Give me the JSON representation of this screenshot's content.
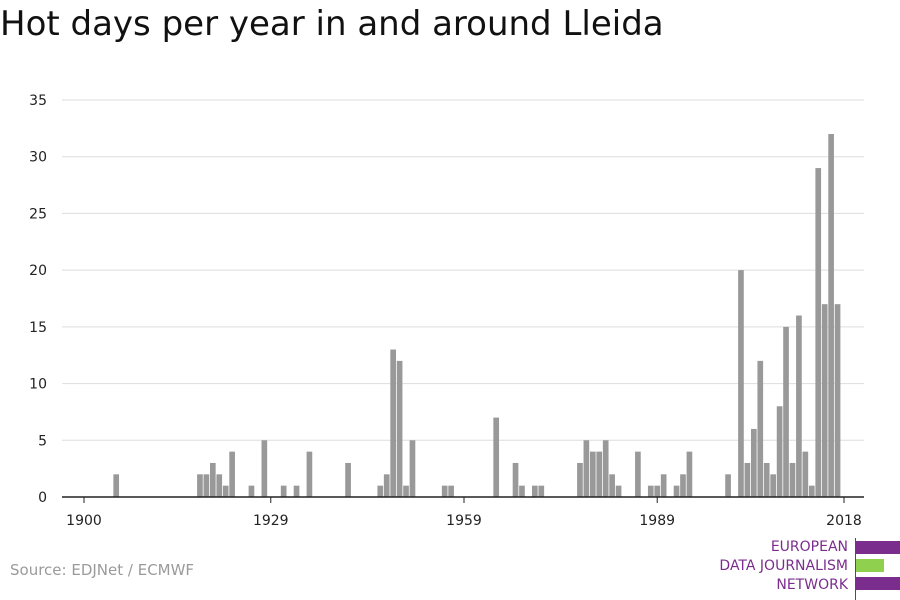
{
  "title": "Hot days per year in and around Lleida",
  "source": "Source: EDJNet / ECMWF",
  "logo": {
    "lines": [
      "EUROPEAN",
      "DATA JOURNALISM",
      "NETWORK"
    ],
    "colors": {
      "purple": "#7b2d8e",
      "green": "#8fd14f"
    }
  },
  "colors": {
    "bar": "#999999",
    "grid": "#dddddd",
    "axis": "#222222",
    "tick_text": "#222222"
  },
  "chart_data": {
    "type": "bar",
    "title": "Hot days per year in and around Lleida",
    "xlabel": "",
    "ylabel": "",
    "ylim": [
      0,
      35
    ],
    "yticks": [
      0,
      5,
      10,
      15,
      20,
      25,
      30,
      35
    ],
    "xticks": [
      1900,
      1929,
      1959,
      1989,
      2018
    ],
    "xlim": [
      1899,
      2020
    ],
    "grid": true,
    "x": [
      1900,
      1901,
      1902,
      1903,
      1904,
      1905,
      1906,
      1907,
      1908,
      1909,
      1910,
      1911,
      1912,
      1913,
      1914,
      1915,
      1916,
      1917,
      1918,
      1919,
      1920,
      1921,
      1922,
      1923,
      1924,
      1925,
      1926,
      1927,
      1928,
      1929,
      1930,
      1931,
      1932,
      1933,
      1934,
      1935,
      1936,
      1937,
      1938,
      1939,
      1940,
      1941,
      1942,
      1943,
      1944,
      1945,
      1946,
      1947,
      1948,
      1949,
      1950,
      1951,
      1952,
      1953,
      1954,
      1955,
      1956,
      1957,
      1958,
      1959,
      1960,
      1961,
      1962,
      1963,
      1964,
      1965,
      1966,
      1967,
      1968,
      1969,
      1970,
      1971,
      1972,
      1973,
      1974,
      1975,
      1976,
      1977,
      1978,
      1979,
      1980,
      1981,
      1982,
      1983,
      1984,
      1985,
      1986,
      1987,
      1988,
      1989,
      1990,
      1991,
      1992,
      1993,
      1994,
      1995,
      1996,
      1997,
      1998,
      1999,
      2000,
      2001,
      2002,
      2003,
      2004,
      2005,
      2006,
      2007,
      2008,
      2009,
      2010,
      2011,
      2012,
      2013,
      2014,
      2015,
      2016,
      2017,
      2018
    ],
    "values": [
      0,
      0,
      0,
      0,
      0,
      2,
      0,
      0,
      0,
      0,
      0,
      0,
      0,
      0,
      0,
      0,
      0,
      0,
      2,
      2,
      3,
      2,
      1,
      4,
      0,
      0,
      1,
      0,
      5,
      0,
      0,
      1,
      0,
      1,
      0,
      4,
      0,
      0,
      0,
      0,
      0,
      3,
      0,
      0,
      0,
      0,
      1,
      2,
      13,
      12,
      1,
      5,
      0,
      0,
      0,
      0,
      1,
      1,
      0,
      0,
      0,
      0,
      0,
      0,
      7,
      0,
      0,
      3,
      1,
      0,
      1,
      1,
      0,
      0,
      0,
      0,
      0,
      3,
      5,
      4,
      4,
      5,
      2,
      1,
      0,
      0,
      4,
      0,
      1,
      1,
      2,
      0,
      1,
      2,
      4,
      0,
      0,
      0,
      0,
      0,
      2,
      0,
      20,
      3,
      6,
      12,
      3,
      2,
      8,
      15,
      3,
      16,
      4,
      1,
      29,
      17,
      32,
      17,
      0
    ]
  }
}
